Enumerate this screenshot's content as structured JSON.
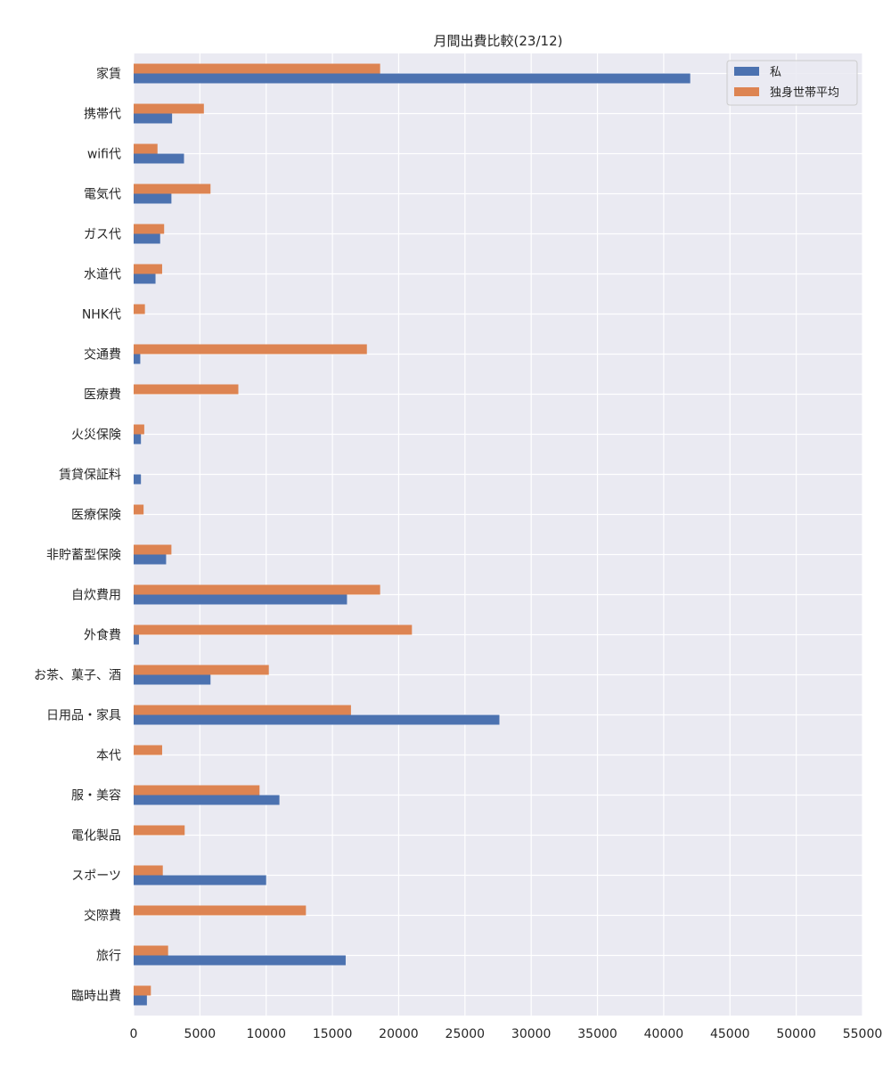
{
  "chart_data": {
    "type": "bar",
    "orientation": "horizontal",
    "title": "月間出費比較(23/12)",
    "xlabel": "",
    "ylabel": "",
    "xlim": [
      0,
      55000
    ],
    "xticks": [
      0,
      5000,
      10000,
      15000,
      20000,
      25000,
      30000,
      35000,
      40000,
      45000,
      50000,
      55000
    ],
    "grid": true,
    "legend_position": "top-right",
    "categories": [
      "家賃",
      "携帯代",
      "wifi代",
      "電気代",
      "ガス代",
      "水道代",
      "NHK代",
      "交通費",
      "医療費",
      "火災保険",
      "賃貸保証料",
      "医療保険",
      "非貯蓄型保険",
      "自炊費用",
      "外食費",
      "お茶、菓子、酒",
      "日用品・家具",
      "本代",
      "服・美容",
      "電化製品",
      "スポーツ",
      "交際費",
      "旅行",
      "臨時出費"
    ],
    "series": [
      {
        "name": "私",
        "color": "#4c72b0",
        "values": [
          42000,
          2900,
          3800,
          2850,
          2000,
          1650,
          0,
          500,
          0,
          550,
          550,
          0,
          2450,
          16100,
          400,
          5800,
          27600,
          0,
          11000,
          0,
          10000,
          0,
          16000,
          1000
        ]
      },
      {
        "name": "独身世帯平均",
        "color": "#dd8452",
        "values": [
          18600,
          5300,
          1800,
          5800,
          2300,
          2150,
          850,
          17600,
          7900,
          800,
          0,
          750,
          2850,
          18600,
          21000,
          10200,
          16400,
          2150,
          9500,
          3850,
          2200,
          13000,
          2600,
          1300
        ]
      }
    ]
  }
}
